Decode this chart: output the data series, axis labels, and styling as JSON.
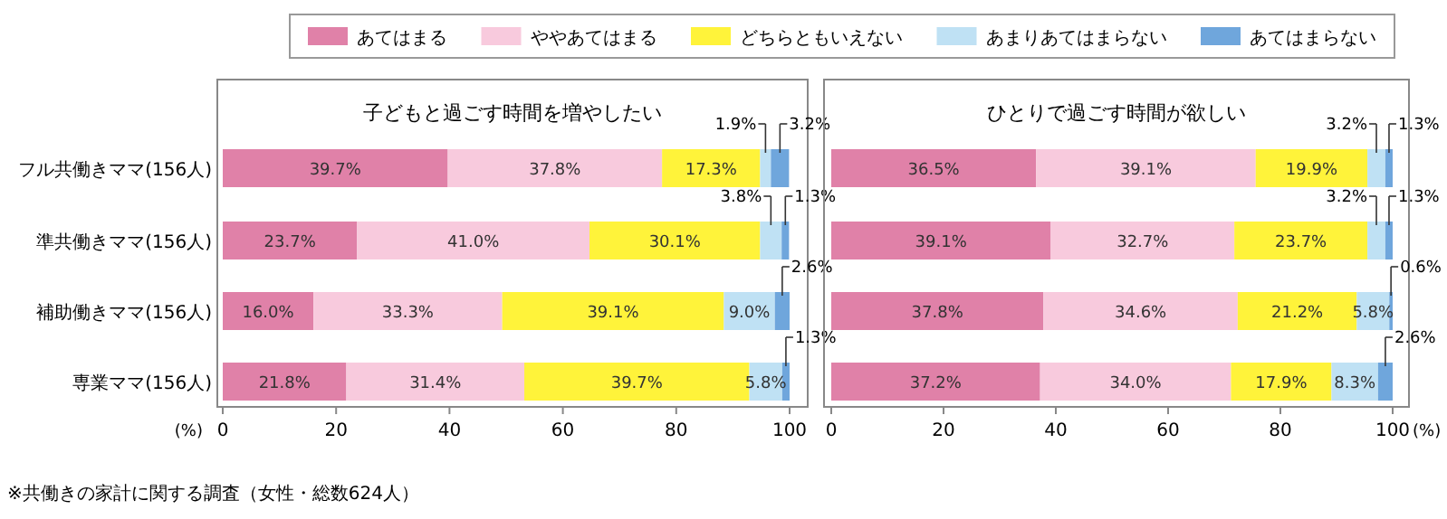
{
  "chart_data": [
    {
      "type": "bar",
      "orientation": "horizontal",
      "stacked": true,
      "legend": "top",
      "title": "子どもと過ごす時間を増やしたい",
      "xlabel": "(%)",
      "categories": [
        "フル共働きママ(156人)",
        "準共働きママ(156人)",
        "補助働きママ(156人)",
        "専業ママ(156人)"
      ],
      "series": [
        {
          "name": "あてはまる",
          "color": "#e081a8",
          "values": [
            39.7,
            23.7,
            16.0,
            21.8
          ],
          "value_labels": [
            "39.7%",
            "23.7%",
            "16.0%",
            "21.8%"
          ]
        },
        {
          "name": "ややあてはまる",
          "color": "#f8cadd",
          "values": [
            37.8,
            41.0,
            33.3,
            31.4
          ],
          "value_labels": [
            "37.8%",
            "41.0%",
            "33.3%",
            "31.4%"
          ]
        },
        {
          "name": "どちらともいえない",
          "color": "#fff33a",
          "values": [
            17.3,
            30.1,
            39.1,
            39.7
          ],
          "value_labels": [
            "17.3%",
            "30.1%",
            "39.1%",
            "39.7%"
          ]
        },
        {
          "name": "あまりあてはまらない",
          "color": "#bfe1f4",
          "values": [
            1.9,
            3.8,
            9.0,
            5.8
          ],
          "value_labels": [
            "1.9%",
            "3.8%",
            "9.0%",
            "5.8%"
          ]
        },
        {
          "name": "あてはまらない",
          "color": "#6fa6dc",
          "values": [
            3.2,
            1.3,
            2.6,
            1.3
          ],
          "value_labels": [
            "3.2%",
            "1.3%",
            "2.6%",
            "1.3%"
          ]
        }
      ],
      "xlim": [
        0,
        100
      ],
      "xticks": [
        0,
        20,
        40,
        60,
        80,
        100
      ],
      "annotations": [
        "※共働きの家計に関する調査（女性・総数624人）"
      ]
    },
    {
      "type": "bar",
      "orientation": "horizontal",
      "stacked": true,
      "tick_labels": "x",
      "title": "ひとりで過ごす時間が欲しい",
      "xlabel": "(%)",
      "categories": [
        null,
        null,
        null,
        null
      ],
      "series": [
        {
          "color": "#e081a8",
          "values": [
            36.5,
            39.1,
            37.8,
            37.2
          ],
          "value_labels": [
            "36.5%",
            "39.1%",
            "37.8%",
            "37.2%"
          ]
        },
        {
          "color": "#f8cadd",
          "values": [
            39.1,
            32.7,
            34.6,
            34.0
          ],
          "value_labels": [
            "39.1%",
            "32.7%",
            "34.6%",
            "34.0%"
          ]
        },
        {
          "color": "#fff33a",
          "values": [
            19.9,
            23.7,
            21.2,
            17.9
          ],
          "value_labels": [
            "19.9%",
            "23.7%",
            "21.2%",
            "17.9%"
          ]
        },
        {
          "color": "#bfe1f4",
          "values": [
            3.2,
            3.2,
            5.8,
            8.3
          ],
          "value_labels": [
            "3.2%",
            "3.2%",
            "5.8%",
            "8.3%"
          ]
        },
        {
          "color": "#6fa6dc",
          "values": [
            1.3,
            1.3,
            0.6,
            2.6
          ],
          "value_labels": [
            "1.3%",
            "1.3%",
            "0.6%",
            "2.6%"
          ]
        }
      ],
      "xlim": [
        0,
        100
      ],
      "xticks": [
        0,
        20,
        40,
        60,
        80,
        100
      ]
    }
  ]
}
